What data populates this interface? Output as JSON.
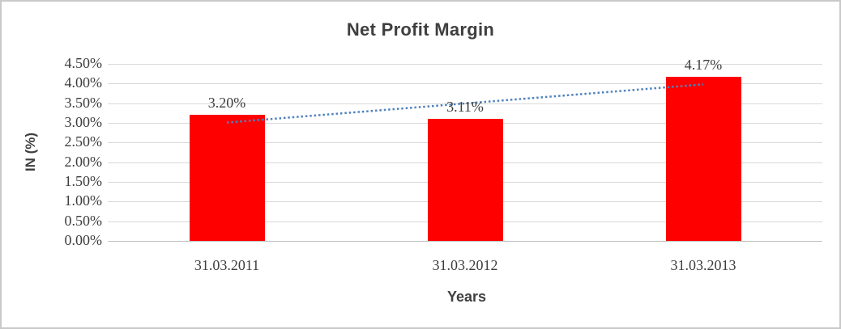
{
  "chart_data": {
    "type": "bar",
    "title": "Net Profit Margin",
    "xlabel": "Years",
    "ylabel": "IN (%)",
    "categories": [
      "31.03.2011",
      "31.03.2012",
      "31.03.2013"
    ],
    "values": [
      3.2,
      3.11,
      4.17
    ],
    "data_labels": [
      "3.20%",
      "3.11%",
      "4.17%"
    ],
    "y_ticks": [
      "0.00%",
      "0.50%",
      "1.00%",
      "1.50%",
      "2.00%",
      "2.50%",
      "3.00%",
      "3.50%",
      "4.00%",
      "4.50%"
    ],
    "ylim": [
      0,
      4.5
    ],
    "grid": true,
    "legend": "none",
    "trendline": {
      "type": "linear",
      "style": "dotted"
    }
  },
  "colors": {
    "bar": "#ff0000",
    "trendline": "#4f81bd",
    "gridline": "#d9d9d9",
    "axis_line": "#bfbfbf",
    "text": "#3d3d3d",
    "frame_border": "#c9c9c9",
    "background": "#ffffff"
  }
}
